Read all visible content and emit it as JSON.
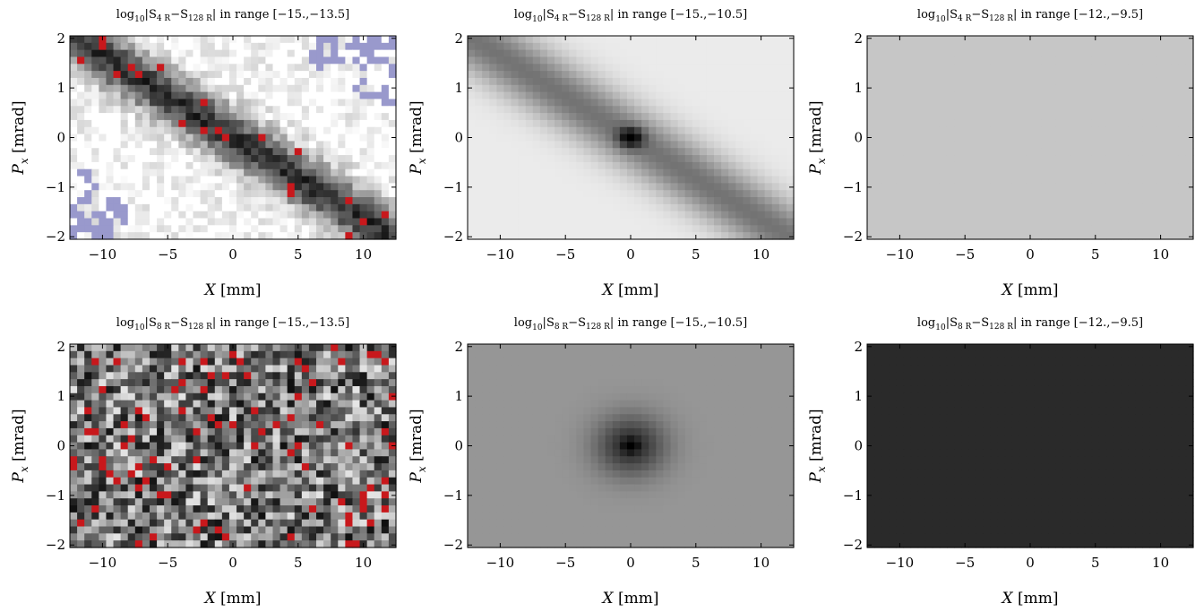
{
  "chart_data": [
    {
      "type": "heatmap",
      "title_parts": {
        "log": "log",
        "log_sub": "10",
        "s1": "S",
        "s1_sub": "4 R",
        "minus": "−",
        "s2": "S",
        "s2_sub": "128 R",
        "range": "in range [−15.,−13.5]"
      },
      "xlabel": {
        "var": "X",
        "unit": "[mm]"
      },
      "ylabel": {
        "var": "P",
        "sub": "x",
        "unit": "[mrad]"
      },
      "xlim": [
        -12.5,
        12.5
      ],
      "ylim": [
        -2.05,
        2.05
      ],
      "xticks": [
        "−10",
        "−5",
        "0",
        "5",
        "10"
      ],
      "xtick_values": [
        -10,
        -5,
        0,
        5,
        10
      ],
      "yticks": [
        "2",
        "1",
        "0",
        "−1",
        "−2"
      ],
      "ytick_values": [
        2,
        1,
        0,
        -1,
        -2
      ],
      "color_range": [
        -15,
        -13.5
      ],
      "pattern": "diagonal",
      "colors": {
        "below": "#ffffff",
        "above": "#c8181c",
        "out_of_range": "#9999cc"
      },
      "grid": false
    },
    {
      "type": "heatmap",
      "title_parts": {
        "log": "log",
        "log_sub": "10",
        "s1": "S",
        "s1_sub": "4 R",
        "minus": "−",
        "s2": "S",
        "s2_sub": "128 R",
        "range": "in range [−15.,−10.5]"
      },
      "xlabel": {
        "var": "X",
        "unit": "[mm]"
      },
      "ylabel": {
        "var": "P",
        "sub": "x",
        "unit": "[mrad]"
      },
      "xlim": [
        -12.5,
        12.5
      ],
      "ylim": [
        -2.05,
        2.05
      ],
      "xticks": [
        "−10",
        "−5",
        "0",
        "5",
        "10"
      ],
      "xtick_values": [
        -10,
        -5,
        0,
        5,
        10
      ],
      "yticks": [
        "2",
        "1",
        "0",
        "−1",
        "−2"
      ],
      "ytick_values": [
        2,
        1,
        0,
        -1,
        -2
      ],
      "color_range": [
        -15,
        -10.5
      ],
      "pattern": "smooth-diagonal",
      "grid": false
    },
    {
      "type": "heatmap",
      "title_parts": {
        "log": "log",
        "log_sub": "10",
        "s1": "S",
        "s1_sub": "4 R",
        "minus": "−",
        "s2": "S",
        "s2_sub": "128 R",
        "range": "in range [−12.,−9.5]"
      },
      "xlabel": {
        "var": "X",
        "unit": "[mm]"
      },
      "ylabel": {
        "var": "P",
        "sub": "x",
        "unit": "[mrad]"
      },
      "xlim": [
        -12.5,
        12.5
      ],
      "ylim": [
        -2.05,
        2.05
      ],
      "xticks": [
        "−10",
        "−5",
        "0",
        "5",
        "10"
      ],
      "xtick_values": [
        -10,
        -5,
        0,
        5,
        10
      ],
      "yticks": [
        "2",
        "1",
        "0",
        "−1",
        "−2"
      ],
      "ytick_values": [
        2,
        1,
        0,
        -1,
        -2
      ],
      "color_range": [
        -12,
        -9.5
      ],
      "pattern": "uniform",
      "fill_color": "#c6c6c6",
      "grid": false
    },
    {
      "type": "heatmap",
      "title_parts": {
        "log": "log",
        "log_sub": "10",
        "s1": "S",
        "s1_sub": "8 R",
        "minus": "−",
        "s2": "S",
        "s2_sub": "128 R",
        "range": "in range [−15.,−13.5]"
      },
      "xlabel": {
        "var": "X",
        "unit": "[mm]"
      },
      "ylabel": {
        "var": "P",
        "sub": "x",
        "unit": "[mrad]"
      },
      "xlim": [
        -12.5,
        12.5
      ],
      "ylim": [
        -2.05,
        2.05
      ],
      "xticks": [
        "−10",
        "−5",
        "0",
        "5",
        "10"
      ],
      "xtick_values": [
        -10,
        -5,
        0,
        5,
        10
      ],
      "yticks": [
        "2",
        "1",
        "0",
        "−1",
        "−2"
      ],
      "ytick_values": [
        2,
        1,
        0,
        -1,
        -2
      ],
      "color_range": [
        -15,
        -13.5
      ],
      "pattern": "noise",
      "colors": {
        "above": "#c8181c"
      },
      "grid": false
    },
    {
      "type": "heatmap",
      "title_parts": {
        "log": "log",
        "log_sub": "10",
        "s1": "S",
        "s1_sub": "8 R",
        "minus": "−",
        "s2": "S",
        "s2_sub": "128 R",
        "range": "in range [−15.,−10.5]"
      },
      "xlabel": {
        "var": "X",
        "unit": "[mm]"
      },
      "ylabel": {
        "var": "P",
        "sub": "x",
        "unit": "[mrad]"
      },
      "xlim": [
        -12.5,
        12.5
      ],
      "ylim": [
        -2.05,
        2.05
      ],
      "xticks": [
        "−10",
        "−5",
        "0",
        "5",
        "10"
      ],
      "xtick_values": [
        -10,
        -5,
        0,
        5,
        10
      ],
      "yticks": [
        "2",
        "1",
        "0",
        "−1",
        "−2"
      ],
      "ytick_values": [
        2,
        1,
        0,
        -1,
        -2
      ],
      "color_range": [
        -15,
        -10.5
      ],
      "pattern": "center-dark",
      "grid": false
    },
    {
      "type": "heatmap",
      "title_parts": {
        "log": "log",
        "log_sub": "10",
        "s1": "S",
        "s1_sub": "8 R",
        "minus": "−",
        "s2": "S",
        "s2_sub": "128 R",
        "range": "in range [−12.,−9.5]"
      },
      "xlabel": {
        "var": "X",
        "unit": "[mm]"
      },
      "ylabel": {
        "var": "P",
        "sub": "x",
        "unit": "[mrad]"
      },
      "xlim": [
        -12.5,
        12.5
      ],
      "ylim": [
        -2.05,
        2.05
      ],
      "xticks": [
        "−10",
        "−5",
        "0",
        "5",
        "10"
      ],
      "xtick_values": [
        -10,
        -5,
        0,
        5,
        10
      ],
      "yticks": [
        "2",
        "1",
        "0",
        "−1",
        "−2"
      ],
      "ytick_values": [
        2,
        1,
        0,
        -1,
        -2
      ],
      "color_range": [
        -12,
        -9.5
      ],
      "pattern": "uniform",
      "fill_color": "#2a2a2a",
      "grid": false
    }
  ]
}
